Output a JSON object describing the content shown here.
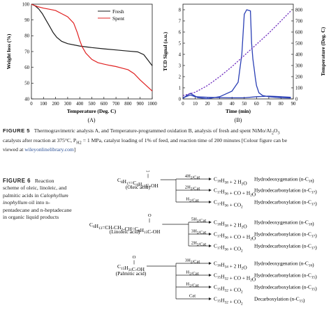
{
  "figure5": {
    "chartA": {
      "panel": "(A)",
      "ylabel": "Weight loss (%)",
      "xlabel": "Temperature (Deg. C)",
      "xticks": [
        "0",
        "100",
        "200",
        "300",
        "400",
        "500",
        "600",
        "700",
        "800",
        "900",
        "1000"
      ],
      "yticks": [
        "40",
        "50",
        "60",
        "70",
        "80",
        "90",
        "100"
      ],
      "legend": [
        "Fresh",
        "Spent"
      ]
    },
    "chartB": {
      "panel": "(B)",
      "ylabel_left": "TCD Signal (a.u.)",
      "ylabel_right": "Temperature (Deg. C)",
      "xlabel": "Time (min)",
      "xticks": [
        "0",
        "10",
        "20",
        "30",
        "40",
        "50",
        "60",
        "70",
        "80",
        "90"
      ],
      "yticks_left": [
        "0",
        "1",
        "2",
        "3",
        "4",
        "5",
        "6",
        "7",
        "8"
      ],
      "yticks_right": [
        "0",
        "100",
        "200",
        "300",
        "400",
        "500",
        "600",
        "700",
        "800"
      ]
    },
    "caption": {
      "label": "FIGURE 5",
      "line1": "Thermogravimetric analysis A, and Temperature-programmed oxidation B, analysis of fresh and spent NiMo/Al",
      "line1_sub": "2",
      "line1_end": "O",
      "line1_sub2": "3",
      "line2_a": "catalysts after reaction at 375°C, P",
      "line2_sub": "H2",
      "line2_b": " = 1 MPa, catalyst loading of 1% of feed, and reaction time of 200 minutes [Colour figure can be",
      "line3_a": "viewed at ",
      "line3_link": "wileyonlinelibrary.com",
      "line3_b": "]"
    }
  },
  "chart_data": [
    {
      "type": "line",
      "title": "",
      "xlabel": "Temperature (Deg. C)",
      "ylabel": "Weight loss (%)",
      "xlim": [
        0,
        1000
      ],
      "ylim": [
        40,
        100
      ],
      "series": [
        {
          "name": "Fresh",
          "color": "#1a1a1a",
          "x": [
            0,
            30,
            60,
            90,
            120,
            150,
            180,
            210,
            250,
            300,
            400,
            500,
            600,
            700,
            800,
            880,
            930,
            960,
            1000
          ],
          "y": [
            100,
            99,
            97,
            94,
            90,
            86,
            82,
            79,
            76.5,
            75,
            73.5,
            72.5,
            71.7,
            71,
            70.3,
            69.8,
            68,
            65,
            61
          ]
        },
        {
          "name": "Spent",
          "color": "#e02020",
          "x": [
            0,
            50,
            100,
            150,
            200,
            250,
            300,
            350,
            380,
            400,
            420,
            450,
            500,
            550,
            600,
            650,
            700,
            750,
            800,
            850,
            900,
            950,
            1000
          ],
          "y": [
            100,
            98.5,
            97.5,
            96.8,
            96,
            94,
            92,
            88,
            82,
            77,
            73,
            69,
            65,
            63,
            62,
            61.2,
            60.5,
            59.5,
            58.5,
            56,
            52,
            48.5,
            45
          ]
        }
      ]
    },
    {
      "type": "line",
      "title": "",
      "xlabel": "Time (min)",
      "ylabel": "TCD Signal (a.u.)",
      "y2label": "Temperature (Deg. C)",
      "xlim": [
        0,
        90
      ],
      "ylim": [
        0,
        8.5
      ],
      "y2lim": [
        0,
        850
      ],
      "series": [
        {
          "name": "",
          "color": "#2a3fb5",
          "axis": "left",
          "x": [
            0,
            3,
            6,
            8,
            12,
            20,
            30,
            40,
            45,
            48,
            50,
            52,
            55,
            56,
            57,
            58,
            59,
            60,
            62,
            65,
            70,
            80,
            88
          ],
          "y": [
            0.05,
            0.3,
            0.5,
            0.38,
            0.12,
            0.02,
            0.2,
            0.7,
            1.5,
            4.0,
            7.6,
            8.0,
            7.9,
            5.0,
            3.6,
            2.8,
            1.9,
            1.2,
            0.55,
            0.3,
            0.2,
            0.1,
            0.08
          ]
        },
        {
          "name": "",
          "color": "#2a3fb5",
          "axis": "left",
          "x": [
            0,
            6,
            10,
            20,
            30,
            40,
            50,
            60,
            70,
            80,
            88
          ],
          "y": [
            0.1,
            0.35,
            0.2,
            0.15,
            0.12,
            0.1,
            0.1,
            0.2,
            0.25,
            0.2,
            0.15
          ]
        },
        {
          "name": "",
          "color": "#7030c0",
          "axis": "right",
          "dashed": true,
          "x": [
            0,
            10,
            20,
            30,
            40,
            50,
            60,
            70,
            80,
            88
          ],
          "y": [
            30,
            60,
            120,
            200,
            290,
            390,
            490,
            590,
            700,
            790
          ]
        }
      ]
    }
  ],
  "figure6": {
    "label": "FIGURE 6",
    "caption_lines": [
      "Reaction",
      "scheme of oleic, linoleic, and",
      "palmitic acids in ",
      "Calophyllum",
      "inophyllum",
      " oil into n-",
      "pentadecane and n-heptadecane",
      "in organic liquid products"
    ],
    "oleic": {
      "o": "O",
      "dbl": "||",
      "formula": "C8H17=C8H15C-OH",
      "name": "(Oleic acid)",
      "reactions": [
        {
          "cat": "4H2/Cat",
          "prod": "C18H38 + 2 H2O",
          "type": "Hydrodeoxygenation (n-C18)"
        },
        {
          "cat": "2H2/Cat",
          "prod": "C17H36 + CO + H2O",
          "type": "Hydrodecarbonylation (n-C17)"
        },
        {
          "cat": "H2/Cat",
          "prod": "C17H36 + CO2",
          "type": "Hydrodecarboxylation (n-C17)"
        }
      ]
    },
    "linoleic": {
      "o": "O",
      "dbl": "||",
      "formula": "C6H13=CH-CH2-CH=C8H15C-OH",
      "name": "(Linoleic acid)",
      "reactions": [
        {
          "cat": "5H2/Cat",
          "prod": "C18H38 + 2 H2O",
          "type": "Hydrodeoxygenation (n-C18)"
        },
        {
          "cat": "3H2/Cat",
          "prod": "C17H36 + CO + H2O",
          "type": "Hydrodecarbonylation (n-C17)"
        },
        {
          "cat": "2H2/Cat",
          "prod": "C17H36 + CO2",
          "type": "Hydrodecarboxylation (n-C17)"
        }
      ]
    },
    "palmitic": {
      "o": "O",
      "dbl": "||",
      "formula": "C15H31C-OH",
      "name": "(Palmitic acid)",
      "reactions": [
        {
          "cat": "3H2/Cat",
          "prod": "C16H34 + 2 H2O",
          "type": "Hydrodeoxygenation (n-C16)"
        },
        {
          "cat": "H2/Cat",
          "prod": "C15H32 + CO + H2O",
          "type": "Hydrodecarbonylation (n-C15)"
        },
        {
          "cat": "H2/Cat",
          "prod": "C15H32 + CO2",
          "type": "Hydrodecarboxylation (n-C15)"
        },
        {
          "cat": "Cat",
          "prod": "C15H32 + CO2",
          "type": "Decarboxylation (n-C15)"
        }
      ]
    }
  }
}
